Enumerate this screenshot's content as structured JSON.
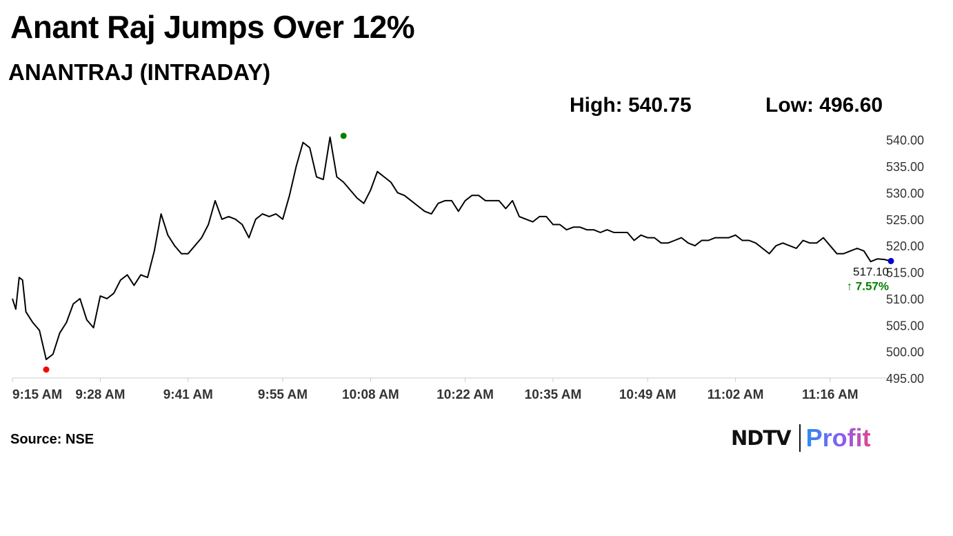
{
  "title": "Anant Raj Jumps Over 12%",
  "subtitle": "ANANTRAJ (INTRADAY)",
  "stats": {
    "high_label": "High: 540.75",
    "low_label": "Low: 496.60"
  },
  "source": "Source: NSE",
  "logo": {
    "ndtv": "NDTV",
    "profit": "Profit"
  },
  "colors": {
    "line": "#000000",
    "high_marker": "#008000",
    "low_marker": "#ff0000",
    "last_marker": "#0000cc",
    "change_text": "#008000",
    "logo_gradient": [
      "#2d8cf0",
      "#8a5cf6",
      "#e2458d"
    ]
  },
  "chart_data": {
    "type": "line",
    "title": "ANANTRAJ (INTRADAY)",
    "xlabel": "",
    "ylabel": "",
    "x_range": [
      "9:15 AM",
      "11:25 AM"
    ],
    "xtick_labels": [
      "9:15 AM",
      "9:28 AM",
      "9:41 AM",
      "9:55 AM",
      "10:08 AM",
      "10:22 AM",
      "10:35 AM",
      "10:49 AM",
      "11:02 AM",
      "11:16 AM"
    ],
    "xtick_minutes": [
      0,
      13,
      26,
      40,
      53,
      67,
      80,
      94,
      107,
      121
    ],
    "ylim": [
      495,
      541
    ],
    "yticks": [
      495,
      500,
      505,
      510,
      515,
      520,
      525,
      530,
      535,
      540
    ],
    "ytick_labels": [
      "495.00",
      "500.00",
      "505.00",
      "510.00",
      "515.00",
      "520.00",
      "525.00",
      "530.00",
      "535.00",
      "540.00"
    ],
    "grid": false,
    "series": [
      {
        "minutes": [
          0,
          0.5,
          1,
          1.5,
          2,
          3,
          4,
          5,
          6,
          7,
          8,
          9,
          10,
          11,
          12,
          13,
          14,
          15,
          16,
          17,
          18,
          19,
          20,
          21,
          22,
          23,
          24,
          25,
          26,
          27,
          28,
          29,
          30,
          31,
          32,
          33,
          34,
          35,
          36,
          37,
          38,
          39,
          40,
          41,
          42,
          43,
          44,
          45,
          46,
          47,
          48,
          49,
          50,
          51,
          52,
          53,
          54,
          55,
          56,
          57,
          58,
          59,
          60,
          61,
          62,
          63,
          64,
          65,
          66,
          67,
          68,
          69,
          70,
          71,
          72,
          73,
          74,
          75,
          76,
          77,
          78,
          79,
          80,
          81,
          82,
          83,
          84,
          85,
          86,
          87,
          88,
          89,
          90,
          91,
          92,
          93,
          94,
          95,
          96,
          97,
          98,
          99,
          100,
          101,
          102,
          103,
          104,
          105,
          106,
          107,
          108,
          109,
          110,
          111,
          112,
          113,
          114,
          115,
          116,
          117,
          118,
          119,
          120,
          121,
          122,
          123,
          124,
          125,
          126,
          127,
          128,
          129,
          130
        ],
        "values": [
          510,
          508,
          514,
          513.5,
          507.5,
          505.5,
          504,
          498.5,
          499.5,
          503.5,
          505.5,
          509,
          510,
          506,
          504.5,
          510.5,
          510,
          511,
          513.5,
          514.5,
          512.5,
          514.5,
          514,
          519,
          526,
          522,
          520,
          518.5,
          518.5,
          520,
          521.5,
          524,
          528.5,
          525,
          525.5,
          525,
          524,
          521.5,
          525,
          526,
          525.5,
          526,
          525,
          529.5,
          535,
          539.5,
          538.5,
          533,
          532.5,
          540.5,
          533,
          532,
          530.5,
          529,
          528,
          530.5,
          534,
          533,
          532,
          530,
          529.5,
          528.5,
          527.5,
          526.5,
          526,
          528,
          528.5,
          528.5,
          526.5,
          528.5,
          529.5,
          529.5,
          528.5,
          528.5,
          528.5,
          527,
          528.5,
          525.5,
          525,
          524.5,
          525.5,
          525.5,
          524,
          524,
          523,
          523.5,
          523.5,
          523,
          523,
          522.5,
          523,
          522.5,
          522.5,
          522.5,
          521,
          522,
          521.5,
          521.5,
          520.5,
          520.5,
          521,
          521.5,
          520.5,
          520,
          521,
          521,
          521.5,
          521.5,
          521.5,
          522,
          521,
          521,
          520.5,
          519.5,
          518.5,
          520,
          520.5,
          520,
          519.5,
          521,
          520.5,
          520.5,
          521.5,
          520,
          518.5,
          518.5,
          519,
          519.5,
          519,
          517,
          517.5,
          517.4,
          517.1
        ]
      }
    ],
    "high_point": {
      "minute": 49,
      "value": 540.75
    },
    "low_point": {
      "minute": 5,
      "value": 496.6
    },
    "last": {
      "minute": 130,
      "value": 517.1,
      "value_label": "517.10",
      "change_label": "↑ 7.57%"
    }
  }
}
